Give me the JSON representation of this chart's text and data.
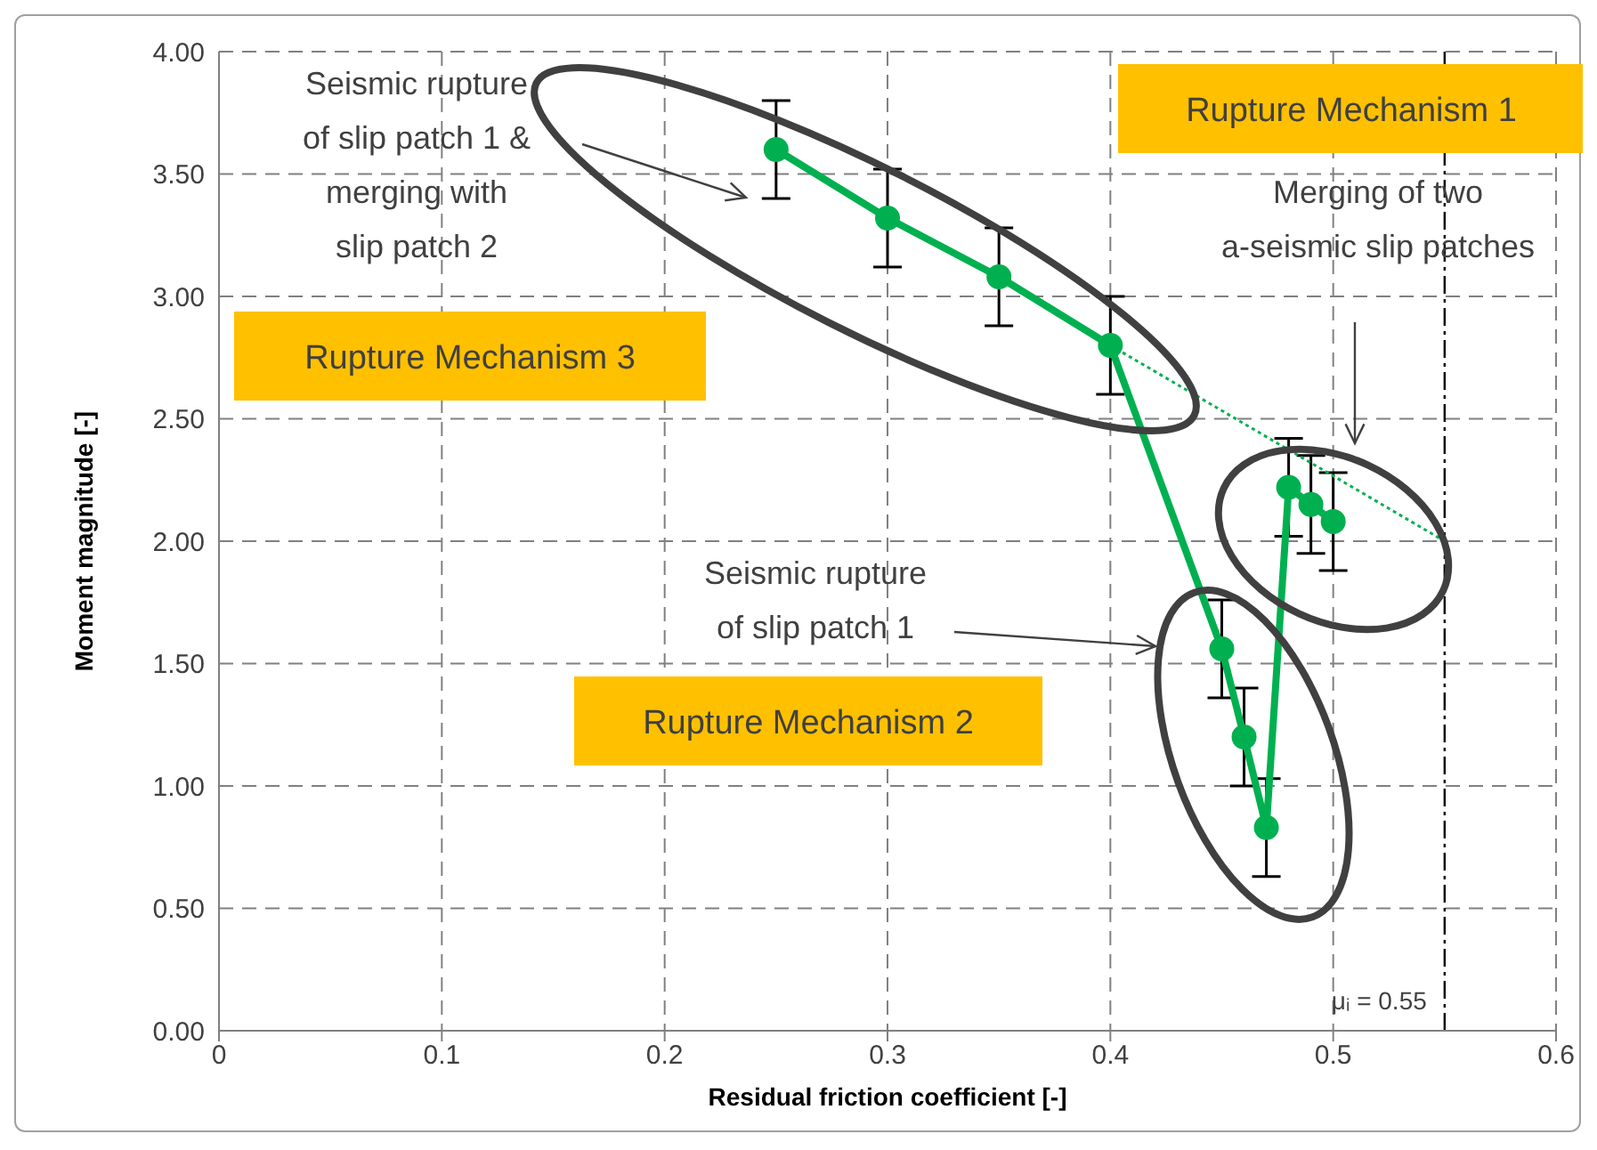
{
  "chart_data": {
    "type": "line",
    "xlabel": "Residual friction coefficient [-]",
    "ylabel": "Moment magnitude [-]",
    "x": [
      0.25,
      0.3,
      0.35,
      0.4,
      0.45,
      0.46,
      0.47,
      0.48,
      0.49,
      0.5
    ],
    "series": [
      {
        "color": "#00b050",
        "values": [
          3.6,
          3.32,
          3.08,
          2.8,
          1.56,
          1.2,
          0.83,
          2.22,
          2.15,
          2.08
        ],
        "errors": [
          0.2,
          0.2,
          0.2,
          0.2,
          0.2,
          0.2,
          0.2,
          0.2,
          0.2,
          0.2
        ],
        "marker": "circle",
        "line_style": "solid"
      },
      {
        "type": "line",
        "x": [
          0.4,
          0.55
        ],
        "color": "#00b050",
        "values": [
          2.8,
          2.0
        ],
        "line_style": "dotted",
        "marker": "none"
      }
    ],
    "xlim": [
      0,
      0.6
    ],
    "xticks": [
      0,
      0.1,
      0.2,
      0.3,
      0.4,
      0.5,
      0.6
    ],
    "ylim": [
      0,
      4
    ],
    "yticks": [
      {
        "value": 0,
        "label": "0.00"
      },
      {
        "value": 0.5,
        "label": "0.50"
      },
      {
        "value": 1,
        "label": "1.00"
      },
      {
        "value": 1.5,
        "label": "1.50"
      },
      {
        "value": 2,
        "label": "2.00"
      },
      {
        "value": 2.5,
        "label": "2.50"
      },
      {
        "value": 3,
        "label": "3.00"
      },
      {
        "value": 3.5,
        "label": "3.50"
      },
      {
        "value": 4,
        "label": "4.00"
      }
    ],
    "grid": true,
    "ref_lines": [
      {
        "axis": "x",
        "value": 0.55,
        "label": "μᵢ = 0.55",
        "line_style": "dashdot",
        "color": "#000000"
      }
    ],
    "annotations": [
      "Seismic rupture\nof slip patch 1 &\nmerging with\nslip patch 2",
      "Merging of two\na-seismic slip patches",
      "Seismic rupture\nof slip patch 1",
      "Rupture Mechanism 1",
      "Rupture Mechanism 3",
      "Rupture Mechanism 2"
    ]
  }
}
